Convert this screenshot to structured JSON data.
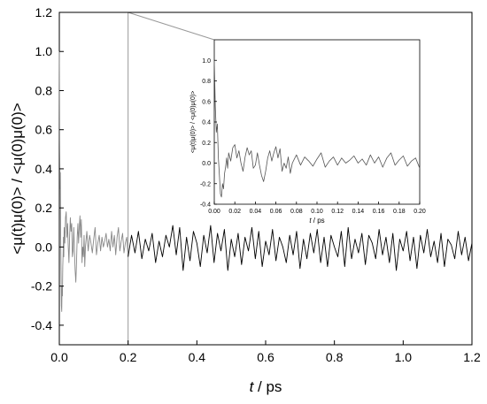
{
  "chart_data": [
    {
      "type": "line",
      "role": "main",
      "title": "",
      "xlabel": {
        "italic": "t",
        "rest": " / ps"
      },
      "ylabel": {
        "text": "<μ(t)μ(0)> / <μ(0)μ(0)>"
      },
      "xlim": [
        0.0,
        1.2
      ],
      "ylim": [
        -0.5,
        1.2
      ],
      "xticks": [
        "0.0",
        "0.2",
        "0.4",
        "0.6",
        "0.8",
        "1.0",
        "1.2"
      ],
      "yticks": [
        "-0.4",
        "-0.2",
        "0.0",
        "0.2",
        "0.4",
        "0.6",
        "0.8",
        "1.0",
        "1.2"
      ],
      "grid": false,
      "series": [
        {
          "segment": "0 to 0.2 ps (gray)",
          "color": "#888888",
          "x": [
            0.0,
            0.001,
            0.002,
            0.003,
            0.004,
            0.005,
            0.006,
            0.007,
            0.008,
            0.009,
            0.01,
            0.011,
            0.012,
            0.013,
            0.014,
            0.016,
            0.018,
            0.02,
            0.022,
            0.024,
            0.026,
            0.028,
            0.03,
            0.032,
            0.034,
            0.036,
            0.038,
            0.04,
            0.042,
            0.044,
            0.046,
            0.048,
            0.05,
            0.052,
            0.054,
            0.056,
            0.058,
            0.06,
            0.062,
            0.064,
            0.066,
            0.068,
            0.07,
            0.072,
            0.074,
            0.076,
            0.078,
            0.08,
            0.084,
            0.088,
            0.092,
            0.096,
            0.1,
            0.104,
            0.108,
            0.112,
            0.116,
            0.12,
            0.124,
            0.128,
            0.132,
            0.136,
            0.14,
            0.144,
            0.148,
            0.152,
            0.156,
            0.16,
            0.164,
            0.168,
            0.172,
            0.176,
            0.18,
            0.184,
            0.188,
            0.192,
            0.196,
            0.2
          ],
          "y": [
            1.0,
            0.55,
            0.3,
            0.38,
            0.05,
            -0.12,
            -0.3,
            -0.33,
            -0.2,
            -0.25,
            -0.1,
            -0.04,
            0.05,
            -0.05,
            0.1,
            0.02,
            0.15,
            0.18,
            0.05,
            0.12,
            0.0,
            -0.08,
            0.06,
            0.15,
            0.08,
            0.12,
            -0.05,
            -0.02,
            0.1,
            -0.02,
            -0.12,
            -0.18,
            -0.08,
            0.05,
            0.12,
            0.02,
            0.1,
            0.16,
            0.05,
            0.14,
            -0.08,
            0.0,
            -0.05,
            0.06,
            -0.1,
            0.0,
            0.04,
            0.08,
            -0.02,
            0.06,
            0.02,
            -0.03,
            0.04,
            0.1,
            -0.04,
            0.02,
            0.06,
            -0.02,
            0.05,
            0.0,
            0.03,
            0.07,
            0.0,
            0.04,
            -0.02,
            0.08,
            0.0,
            0.06,
            -0.04,
            0.05,
            0.1,
            -0.02,
            0.03,
            0.07,
            -0.03,
            0.02,
            0.05,
            -0.05
          ]
        },
        {
          "segment": "0.2 to 1.2 ps (black)",
          "color": "#000000",
          "x": [
            0.2,
            0.21,
            0.22,
            0.23,
            0.24,
            0.25,
            0.26,
            0.27,
            0.28,
            0.29,
            0.3,
            0.31,
            0.32,
            0.33,
            0.34,
            0.35,
            0.36,
            0.37,
            0.38,
            0.39,
            0.4,
            0.41,
            0.42,
            0.43,
            0.44,
            0.45,
            0.46,
            0.47,
            0.48,
            0.49,
            0.5,
            0.51,
            0.52,
            0.53,
            0.54,
            0.55,
            0.56,
            0.57,
            0.58,
            0.59,
            0.6,
            0.61,
            0.62,
            0.63,
            0.64,
            0.65,
            0.66,
            0.67,
            0.68,
            0.69,
            0.7,
            0.71,
            0.72,
            0.73,
            0.74,
            0.75,
            0.76,
            0.77,
            0.78,
            0.79,
            0.8,
            0.81,
            0.82,
            0.83,
            0.84,
            0.85,
            0.86,
            0.87,
            0.88,
            0.89,
            0.9,
            0.91,
            0.92,
            0.93,
            0.94,
            0.95,
            0.96,
            0.97,
            0.98,
            0.99,
            1.0,
            1.01,
            1.02,
            1.03,
            1.04,
            1.05,
            1.06,
            1.07,
            1.08,
            1.09,
            1.1,
            1.11,
            1.12,
            1.13,
            1.14,
            1.15,
            1.16,
            1.17,
            1.18,
            1.19,
            1.2
          ],
          "y": [
            -0.05,
            0.06,
            -0.03,
            0.08,
            -0.06,
            0.04,
            -0.02,
            0.07,
            -0.08,
            0.03,
            -0.05,
            0.06,
            0.0,
            0.11,
            -0.04,
            0.1,
            -0.12,
            0.05,
            -0.07,
            0.08,
            0.02,
            -0.1,
            0.06,
            -0.03,
            0.11,
            -0.08,
            0.07,
            -0.02,
            0.09,
            -0.12,
            0.04,
            -0.05,
            0.07,
            -0.09,
            0.05,
            -0.02,
            0.1,
            -0.06,
            0.08,
            -0.1,
            0.03,
            -0.04,
            0.09,
            -0.07,
            0.05,
            0.0,
            -0.08,
            0.06,
            -0.04,
            0.08,
            -0.11,
            0.04,
            -0.06,
            0.07,
            -0.03,
            0.09,
            -0.08,
            0.05,
            -0.1,
            0.06,
            0.0,
            -0.05,
            0.08,
            -0.1,
            0.1,
            -0.06,
            0.04,
            -0.03,
            0.07,
            -0.09,
            0.06,
            0.02,
            -0.06,
            0.09,
            -0.04,
            0.05,
            -0.08,
            0.07,
            -0.12,
            0.04,
            -0.02,
            0.08,
            -0.07,
            0.05,
            -0.11,
            0.06,
            -0.03,
            0.09,
            -0.05,
            0.03,
            -0.08,
            0.07,
            -0.1,
            0.04,
            0.01,
            -0.06,
            0.08,
            -0.04,
            0.05,
            -0.07,
            0.02
          ]
        }
      ]
    },
    {
      "type": "line",
      "role": "inset",
      "title": "",
      "xlabel": {
        "italic": "t",
        "rest": " / ps"
      },
      "ylabel": {
        "text": "<μ(t)μ(0)> / <μ(0)μ(0)>"
      },
      "xlim": [
        0.0,
        0.2
      ],
      "ylim": [
        -0.4,
        1.2
      ],
      "xticks": [
        "0.00",
        "0.02",
        "0.04",
        "0.06",
        "0.08",
        "0.10",
        "0.12",
        "0.14",
        "0.16",
        "0.18",
        "0.20"
      ],
      "yticks": [
        "-0.4",
        "-0.2",
        "0.0",
        "0.2",
        "0.4",
        "0.6",
        "0.8",
        "1.0"
      ],
      "grid": false,
      "series": [
        {
          "color": "#555555",
          "x": [
            0.0,
            0.001,
            0.002,
            0.003,
            0.004,
            0.005,
            0.006,
            0.007,
            0.008,
            0.009,
            0.01,
            0.011,
            0.012,
            0.013,
            0.014,
            0.016,
            0.018,
            0.02,
            0.022,
            0.024,
            0.026,
            0.028,
            0.03,
            0.032,
            0.034,
            0.036,
            0.038,
            0.04,
            0.042,
            0.044,
            0.046,
            0.048,
            0.05,
            0.052,
            0.054,
            0.056,
            0.058,
            0.06,
            0.062,
            0.064,
            0.066,
            0.068,
            0.07,
            0.072,
            0.074,
            0.076,
            0.078,
            0.08,
            0.084,
            0.088,
            0.092,
            0.096,
            0.1,
            0.104,
            0.108,
            0.112,
            0.116,
            0.12,
            0.124,
            0.128,
            0.132,
            0.136,
            0.14,
            0.144,
            0.148,
            0.152,
            0.156,
            0.16,
            0.164,
            0.168,
            0.172,
            0.176,
            0.18,
            0.184,
            0.188,
            0.192,
            0.196,
            0.2
          ],
          "y": [
            1.0,
            0.55,
            0.3,
            0.38,
            0.05,
            -0.12,
            -0.3,
            -0.33,
            -0.2,
            -0.25,
            -0.1,
            -0.04,
            0.05,
            -0.05,
            0.1,
            0.02,
            0.15,
            0.18,
            0.05,
            0.12,
            0.0,
            -0.08,
            0.06,
            0.15,
            0.08,
            0.12,
            -0.05,
            -0.02,
            0.1,
            -0.02,
            -0.12,
            -0.18,
            -0.08,
            0.05,
            0.12,
            0.02,
            0.1,
            0.16,
            0.05,
            0.14,
            -0.08,
            0.0,
            -0.05,
            0.06,
            -0.1,
            0.0,
            0.04,
            0.08,
            -0.02,
            0.06,
            0.02,
            -0.03,
            0.04,
            0.1,
            -0.04,
            0.02,
            0.06,
            -0.02,
            0.05,
            0.0,
            0.03,
            0.07,
            0.0,
            0.04,
            -0.02,
            0.08,
            0.0,
            0.06,
            -0.04,
            0.05,
            0.1,
            -0.02,
            0.03,
            0.07,
            -0.03,
            0.02,
            0.05,
            -0.05
          ]
        }
      ]
    }
  ]
}
